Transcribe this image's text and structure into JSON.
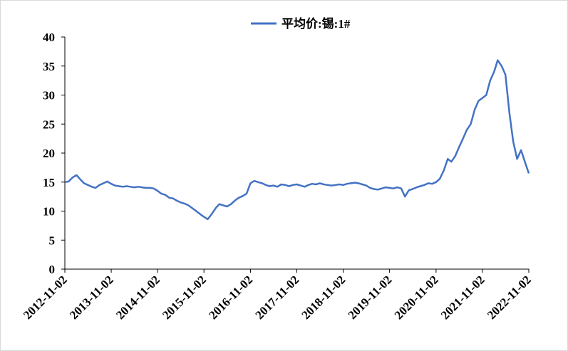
{
  "chart_data": {
    "type": "line",
    "x": [
      "2012-11-02",
      "2012-12-02",
      "2013-01-02",
      "2013-02-02",
      "2013-03-02",
      "2013-04-02",
      "2013-05-02",
      "2013-06-02",
      "2013-07-02",
      "2013-08-02",
      "2013-09-02",
      "2013-10-02",
      "2013-11-02",
      "2013-12-02",
      "2014-01-02",
      "2014-02-02",
      "2014-03-02",
      "2014-04-02",
      "2014-05-02",
      "2014-06-02",
      "2014-07-02",
      "2014-08-02",
      "2014-09-02",
      "2014-10-02",
      "2014-11-02",
      "2014-12-02",
      "2015-01-02",
      "2015-02-02",
      "2015-03-02",
      "2015-04-02",
      "2015-05-02",
      "2015-06-02",
      "2015-07-02",
      "2015-08-02",
      "2015-09-02",
      "2015-10-02",
      "2015-11-02",
      "2015-12-02",
      "2016-01-02",
      "2016-02-02",
      "2016-03-02",
      "2016-04-02",
      "2016-05-02",
      "2016-06-02",
      "2016-07-02",
      "2016-08-02",
      "2016-09-02",
      "2016-10-02",
      "2016-11-02",
      "2016-12-02",
      "2017-01-02",
      "2017-02-02",
      "2017-03-02",
      "2017-04-02",
      "2017-05-02",
      "2017-06-02",
      "2017-07-02",
      "2017-08-02",
      "2017-09-02",
      "2017-10-02",
      "2017-11-02",
      "2017-12-02",
      "2018-01-02",
      "2018-02-02",
      "2018-03-02",
      "2018-04-02",
      "2018-05-02",
      "2018-06-02",
      "2018-07-02",
      "2018-08-02",
      "2018-09-02",
      "2018-10-02",
      "2018-11-02",
      "2018-12-02",
      "2019-01-02",
      "2019-02-02",
      "2019-03-02",
      "2019-04-02",
      "2019-05-02",
      "2019-06-02",
      "2019-07-02",
      "2019-08-02",
      "2019-09-02",
      "2019-10-02",
      "2019-11-02",
      "2019-12-02",
      "2020-01-02",
      "2020-02-02",
      "2020-03-02",
      "2020-04-02",
      "2020-05-02",
      "2020-06-02",
      "2020-07-02",
      "2020-08-02",
      "2020-09-02",
      "2020-10-02",
      "2020-11-02",
      "2020-12-02",
      "2021-01-02",
      "2021-02-02",
      "2021-03-02",
      "2021-04-02",
      "2021-05-02",
      "2021-06-02",
      "2021-07-02",
      "2021-08-02",
      "2021-09-02",
      "2021-10-02",
      "2021-11-02",
      "2021-12-02",
      "2022-01-02",
      "2022-02-02",
      "2022-03-02",
      "2022-04-02",
      "2022-05-02",
      "2022-06-02",
      "2022-07-02",
      "2022-08-02",
      "2022-09-02",
      "2022-10-02",
      "2022-11-02"
    ],
    "series": [
      {
        "name": "平均价:锡:1#",
        "color": "#4472c4",
        "values": [
          15.0,
          15.1,
          15.8,
          16.2,
          15.5,
          14.8,
          14.5,
          14.2,
          14.0,
          14.5,
          14.8,
          15.1,
          14.7,
          14.4,
          14.3,
          14.2,
          14.3,
          14.2,
          14.1,
          14.2,
          14.1,
          14.0,
          14.0,
          13.9,
          13.5,
          13.0,
          12.8,
          12.3,
          12.2,
          11.8,
          11.5,
          11.3,
          11.0,
          10.5,
          10.0,
          9.5,
          9.0,
          8.6,
          9.5,
          10.5,
          11.2,
          11.0,
          10.8,
          11.2,
          11.8,
          12.3,
          12.6,
          13.0,
          14.8,
          15.2,
          15.0,
          14.8,
          14.5,
          14.3,
          14.4,
          14.2,
          14.6,
          14.5,
          14.3,
          14.5,
          14.6,
          14.4,
          14.2,
          14.5,
          14.7,
          14.6,
          14.8,
          14.6,
          14.5,
          14.4,
          14.5,
          14.6,
          14.5,
          14.7,
          14.8,
          14.9,
          14.8,
          14.6,
          14.4,
          14.0,
          13.8,
          13.7,
          13.9,
          14.1,
          14.0,
          13.9,
          14.1,
          13.9,
          12.5,
          13.6,
          13.8,
          14.1,
          14.3,
          14.5,
          14.8,
          14.7,
          15.0,
          15.6,
          17.0,
          19.0,
          18.5,
          19.5,
          21.0,
          22.5,
          24.0,
          25.0,
          27.5,
          29.0,
          29.5,
          30.0,
          32.5,
          34.0,
          36.0,
          35.0,
          33.5,
          27.0,
          22.0,
          19.0,
          20.5,
          18.5,
          16.5
        ]
      }
    ],
    "xlim": [
      "2012-11-02",
      "2022-11-02"
    ],
    "xticks": [
      "2012-11-02",
      "2013-11-02",
      "2014-11-02",
      "2015-11-02",
      "2016-11-02",
      "2017-11-02",
      "2018-11-02",
      "2019-11-02",
      "2020-11-02",
      "2021-11-02",
      "2022-11-02"
    ],
    "ylim": [
      0,
      40
    ],
    "yticks": [
      0,
      5,
      10,
      15,
      20,
      25,
      30,
      35,
      40
    ],
    "grid": false
  }
}
